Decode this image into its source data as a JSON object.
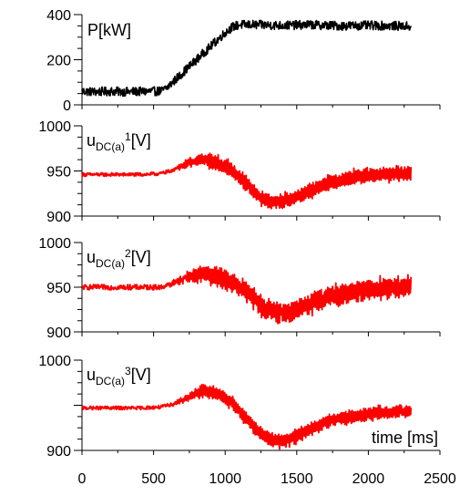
{
  "chart_data": [
    {
      "type": "line",
      "panel_label": "P[kW]",
      "ylim": [
        0,
        400
      ],
      "yticks": [
        0,
        200,
        400
      ],
      "ytick_labels": [
        "0",
        "200",
        "400"
      ],
      "xlim": [
        0,
        2500
      ],
      "series": [
        {
          "color": "#000000",
          "x": [
            0,
            100,
            200,
            300,
            400,
            500,
            560,
            600,
            700,
            800,
            900,
            1000,
            1050,
            1100,
            1200,
            1400,
            1600,
            1800,
            2000,
            2200,
            2300
          ],
          "y": [
            60,
            58,
            60,
            58,
            59,
            60,
            62,
            80,
            140,
            200,
            260,
            320,
            345,
            355,
            355,
            352,
            355,
            350,
            352,
            350,
            348
          ],
          "noise": 5,
          "noise_from": 0
        }
      ]
    },
    {
      "type": "line",
      "panel_label_main": "u",
      "panel_label_sub": "DC(a)",
      "panel_label_sup": "1",
      "panel_label_unit": "[V]",
      "ylim": [
        900,
        1000
      ],
      "yticks": [
        900,
        950,
        1000
      ],
      "ytick_labels": [
        "900",
        "950",
        "1000"
      ],
      "xlim": [
        0,
        2500
      ],
      "series": [
        {
          "color": "#ff0000",
          "x": [
            0,
            200,
            400,
            550,
            650,
            750,
            850,
            950,
            1050,
            1150,
            1250,
            1350,
            1450,
            1550,
            1650,
            1750,
            1900,
            2050,
            2200,
            2300
          ],
          "y": [
            946,
            946,
            946,
            947,
            952,
            960,
            963,
            958,
            950,
            935,
            920,
            915,
            918,
            925,
            932,
            938,
            943,
            946,
            947,
            948
          ],
          "noise": 2,
          "noise_from": 600,
          "noise_amp": 9
        }
      ]
    },
    {
      "type": "line",
      "panel_label_main": "u",
      "panel_label_sub": "DC(a)",
      "panel_label_sup": "2",
      "panel_label_unit": "[V]",
      "ylim": [
        900,
        1000
      ],
      "yticks": [
        900,
        950,
        1000
      ],
      "ytick_labels": [
        "900",
        "950",
        "1000"
      ],
      "xlim": [
        0,
        2500
      ],
      "series": [
        {
          "color": "#ff0000",
          "x": [
            0,
            200,
            400,
            550,
            650,
            750,
            850,
            950,
            1050,
            1150,
            1250,
            1350,
            1450,
            1550,
            1650,
            1750,
            1900,
            2050,
            2200,
            2300
          ],
          "y": [
            950,
            950,
            950,
            950,
            955,
            963,
            965,
            962,
            955,
            945,
            930,
            922,
            922,
            928,
            935,
            940,
            945,
            948,
            950,
            952
          ],
          "noise": 3,
          "noise_from": 600,
          "noise_amp": 12
        }
      ]
    },
    {
      "type": "line",
      "panel_label_main": "u",
      "panel_label_sub": "DC(a)",
      "panel_label_sup": "3",
      "panel_label_unit": "[V]",
      "ylim": [
        900,
        1000
      ],
      "yticks": [
        900,
        1000
      ],
      "ytick_labels": [
        "900",
        "1000"
      ],
      "xlim": [
        0,
        2500
      ],
      "xticks": [
        0,
        500,
        1000,
        1500,
        2000,
        2500
      ],
      "xtick_labels": [
        "0",
        "500",
        "1000",
        "1500",
        "2000",
        "2500"
      ],
      "xlabel": "time [ms]",
      "series": [
        {
          "color": "#ff0000",
          "x": [
            0,
            200,
            400,
            550,
            650,
            750,
            850,
            950,
            1050,
            1150,
            1250,
            1350,
            1450,
            1550,
            1650,
            1750,
            1900,
            2050,
            2200,
            2300
          ],
          "y": [
            947,
            947,
            947,
            948,
            952,
            960,
            966,
            963,
            952,
            935,
            918,
            910,
            912,
            920,
            928,
            934,
            938,
            941,
            943,
            944
          ],
          "noise": 2,
          "noise_from": 600,
          "noise_amp": 8
        }
      ]
    }
  ]
}
